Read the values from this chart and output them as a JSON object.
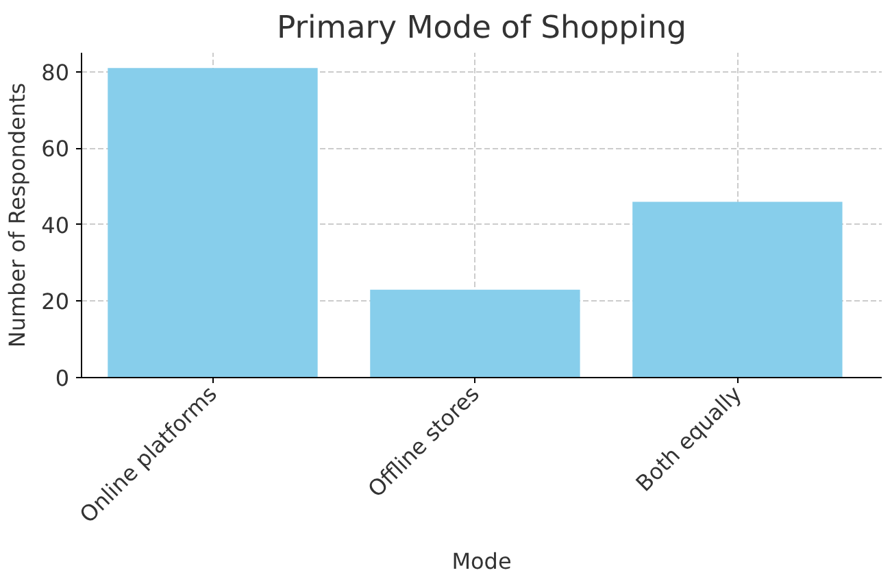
{
  "chart_data": {
    "type": "bar",
    "title": "Primary Mode of Shopping",
    "xlabel": "Mode",
    "ylabel": "Number of Respondents",
    "categories": [
      "Online platforms",
      "Offline stores",
      "Both equally"
    ],
    "values": [
      81,
      23,
      46
    ],
    "color": "#87ceeb",
    "ylim": [
      0,
      85
    ],
    "yticks": [
      0,
      20,
      40,
      60,
      80
    ],
    "grid": true
  }
}
